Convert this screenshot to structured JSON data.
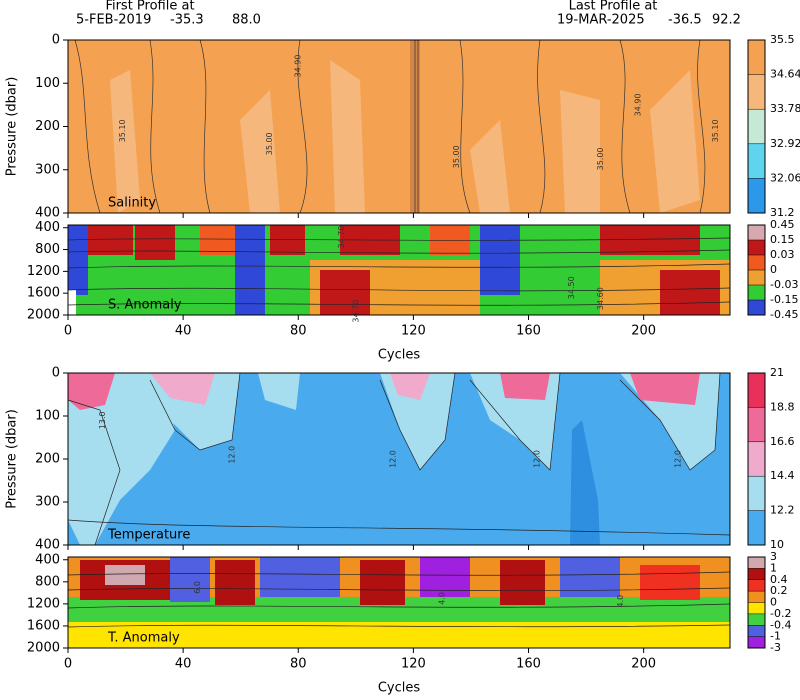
{
  "header": {
    "first": {
      "label": "First Profile at",
      "date": "5-FEB-2019",
      "lat": -35.3,
      "lon": {
        "value": 88,
        "label": "88.0"
      }
    },
    "last": {
      "label": "Last Profile at",
      "date": "19-MAR-2025",
      "lat": -36.5,
      "lon": 92.2
    }
  },
  "chart_data": [
    {
      "type": "contour",
      "title": "Salinity",
      "ylabel": "Pressure (dbar)",
      "xlim": [
        0,
        230
      ],
      "xticks": [
        0,
        40,
        80,
        120,
        160,
        200
      ],
      "ylim": [
        0,
        400
      ],
      "yticks": [
        0,
        100,
        200,
        300,
        400
      ],
      "colorbar": {
        "levels": [
          35.5,
          34.64,
          33.78,
          32.92,
          32.06,
          31.2
        ],
        "colors": [
          "#f4a252",
          "#f6b77c",
          "#c6e8d6",
          "#5fd4ee",
          "#2c98ea"
        ]
      },
      "contour_labels": [
        {
          "label": "35.10",
          "cycle": 19,
          "pressure": 210
        },
        {
          "label": "35.00",
          "cycle": 70,
          "pressure": 240
        },
        {
          "label": "34.90",
          "cycle": 80,
          "pressure": 60
        },
        {
          "label": "35.00",
          "cycle": 135,
          "pressure": 270
        },
        {
          "label": "35.00",
          "cycle": 185,
          "pressure": 275
        },
        {
          "label": "34.90",
          "cycle": 198,
          "pressure": 150
        },
        {
          "label": "35.10",
          "cycle": 225,
          "pressure": 210
        }
      ]
    },
    {
      "type": "contour",
      "title": "S. Anomaly",
      "xlabel": "Cycles",
      "xlim": [
        0,
        230
      ],
      "xticks": [
        0,
        40,
        80,
        120,
        160,
        200
      ],
      "ylim": [
        350,
        2000
      ],
      "yticks": [
        400,
        800,
        1200,
        1600,
        2000
      ],
      "colorbar": {
        "levels": [
          0.45,
          0.15,
          0.03,
          0,
          -0.03,
          -0.15,
          -0.45
        ],
        "colors": [
          "#d8a8b0",
          "#c01818",
          "#f05a20",
          "#f0a030",
          "#34cc34",
          "#3048d8"
        ]
      },
      "contour_labels": [
        {
          "label": "34.70",
          "cycle": 95,
          "pressure": 570
        },
        {
          "label": "34.50",
          "cycle": 175,
          "pressure": 1500
        },
        {
          "label": "34.60",
          "cycle": 185,
          "pressure": 1700
        },
        {
          "label": "34.70",
          "cycle": 100,
          "pressure": 1930
        }
      ]
    },
    {
      "type": "contour",
      "title": "Temperature",
      "ylabel": "Pressure (dbar)",
      "xlim": [
        0,
        230
      ],
      "xticks": [
        0,
        40,
        80,
        120,
        160,
        200
      ],
      "ylim": [
        0,
        400
      ],
      "yticks": [
        0,
        100,
        200,
        300,
        400
      ],
      "colorbar": {
        "levels": [
          21,
          18.8,
          16.6,
          14.4,
          12.2,
          10
        ],
        "colors": [
          "#e8305a",
          "#ee6a98",
          "#f0aacb",
          "#a6def0",
          "#4aaaee"
        ]
      },
      "contour_labels": [
        {
          "label": "13.0",
          "cycle": 12,
          "pressure": 110
        },
        {
          "label": "12.0",
          "cycle": 57,
          "pressure": 190
        },
        {
          "label": "12.0",
          "cycle": 113,
          "pressure": 200
        },
        {
          "label": "12.0",
          "cycle": 163,
          "pressure": 200
        },
        {
          "label": "12.0",
          "cycle": 212,
          "pressure": 200
        }
      ]
    },
    {
      "type": "contour",
      "title": "T. Anomaly",
      "xlabel": "Cycles",
      "xlim": [
        0,
        230
      ],
      "xticks": [
        0,
        40,
        80,
        120,
        160,
        200
      ],
      "ylim": [
        350,
        2000
      ],
      "yticks": [
        400,
        800,
        1200,
        1600,
        2000
      ],
      "colorbar": {
        "levels": [
          3,
          1,
          0.4,
          0.2,
          0,
          -0.2,
          -0.4,
          -1,
          -3
        ],
        "colors": [
          "#d0a8b0",
          "#b01010",
          "#f03020",
          "#f09020",
          "#ffe400",
          "#40d040",
          "#5060e0",
          "#a020e0"
        ]
      },
      "contour_labels": [
        {
          "label": "6.0",
          "cycle": 45,
          "pressure": 900
        },
        {
          "label": "4.0",
          "cycle": 130,
          "pressure": 1100
        },
        {
          "label": "4.0",
          "cycle": 192,
          "pressure": 1150
        }
      ]
    }
  ]
}
